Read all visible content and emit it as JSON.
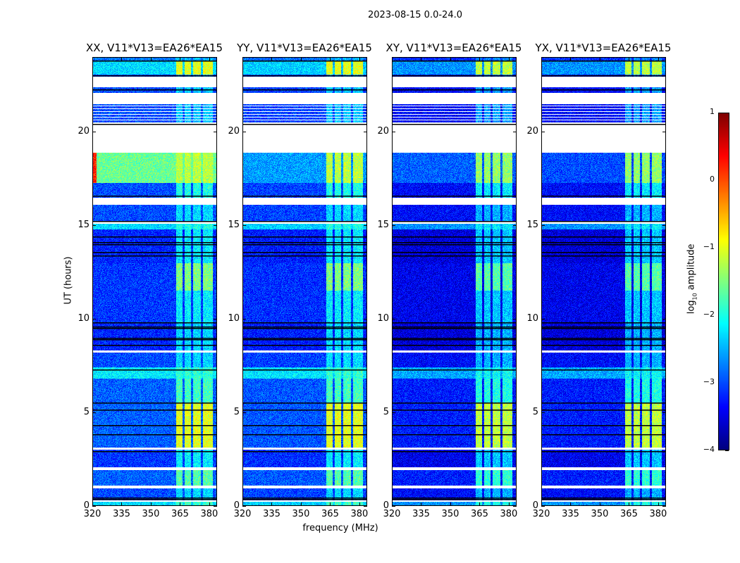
{
  "suptitle": "2023-08-15 0.0-24.0",
  "chart_data": {
    "type": "heatmap",
    "xlabel": "frequency (MHz)",
    "ylabel": "UT (hours)",
    "xlim": [
      320,
      384
    ],
    "ylim": [
      0,
      24
    ],
    "xticks": [
      320,
      335,
      350,
      365,
      380
    ],
    "yticks": [
      0,
      5,
      10,
      15,
      20
    ],
    "colormap": "jet",
    "colorbar": {
      "label_main": "log",
      "label_sub": "10",
      "label_rest": " amplitude",
      "range": [
        -4,
        1
      ],
      "ticks": [
        1,
        0,
        -1,
        -2,
        -3,
        -4
      ]
    },
    "panels": [
      {
        "title": "XX, V11*V13=EA26*EA15",
        "offset": 0.0,
        "evening_level": -1.6
      },
      {
        "title": "YY, V11*V13=EA26*EA15",
        "offset": -0.05,
        "evening_level": -2.6
      },
      {
        "title": "XY, V11*V13=EA26*EA15",
        "offset": -0.35,
        "evening_level": -2.9
      },
      {
        "title": "YX, V11*V13=EA26*EA15",
        "offset": -0.35,
        "evening_level": -3.0
      }
    ],
    "rfi_band_mhz": [
      363,
      382
    ],
    "rfi_gaps_mhz": [
      [
        366.5,
        367.5
      ],
      [
        371,
        372
      ],
      [
        376,
        377
      ]
    ],
    "segments_hours": [
      {
        "from": 0.0,
        "to": 0.2,
        "level": -2.3,
        "rfi": -1.8
      },
      {
        "from": 0.2,
        "to": 0.28,
        "flagged": true
      },
      {
        "from": 0.28,
        "to": 0.9,
        "level": -3.0,
        "rfi": -2.3
      },
      {
        "from": 0.9,
        "to": 1.05,
        "flagged": true
      },
      {
        "from": 1.05,
        "to": 1.9,
        "level": -2.9,
        "rfi": -1.7
      },
      {
        "from": 1.9,
        "to": 2.05,
        "flagged": true
      },
      {
        "from": 2.05,
        "to": 3.0,
        "level": -3.1,
        "rfi": -2.2
      },
      {
        "from": 3.0,
        "to": 3.1,
        "flagged": true
      },
      {
        "from": 3.1,
        "to": 5.5,
        "level": -2.9,
        "rfi": -1.0
      },
      {
        "from": 5.5,
        "to": 6.8,
        "level": -2.9,
        "rfi": -1.8
      },
      {
        "from": 6.8,
        "to": 7.4,
        "level": -2.2,
        "rfi": -1.9
      },
      {
        "from": 7.4,
        "to": 8.2,
        "level": -3.0,
        "rfi": -2.3
      },
      {
        "from": 8.2,
        "to": 8.32,
        "flagged": true
      },
      {
        "from": 8.32,
        "to": 9.8,
        "level": -3.2,
        "rfi": -2.3
      },
      {
        "from": 9.8,
        "to": 11.5,
        "level": -3.1,
        "rfi": -2.2
      },
      {
        "from": 11.5,
        "to": 13.0,
        "level": -3.1,
        "rfi": -1.5
      },
      {
        "from": 13.0,
        "to": 14.8,
        "level": -3.2,
        "rfi": -2.2
      },
      {
        "from": 14.8,
        "to": 15.1,
        "level": -2.3,
        "rfi": -2.0
      },
      {
        "from": 15.1,
        "to": 15.2,
        "flagged": true
      },
      {
        "from": 15.2,
        "to": 16.1,
        "level": -3.0,
        "rfi": -2.3
      },
      {
        "from": 16.1,
        "to": 16.5,
        "flagged": true
      },
      {
        "from": 16.5,
        "to": 17.3,
        "level": -3.0,
        "rfi": -2.0
      },
      {
        "from": 17.3,
        "to": 18.9,
        "level": "evening",
        "rfi": -1.2
      },
      {
        "from": 18.9,
        "to": 20.5,
        "flagged": true
      },
      {
        "from": 20.5,
        "to": 21.5,
        "level": -3.0,
        "rfi": -2.4,
        "striped": true
      },
      {
        "from": 21.5,
        "to": 22.1,
        "flagged": true
      },
      {
        "from": 22.1,
        "to": 22.4,
        "level": -3.0,
        "rfi": -2.4
      },
      {
        "from": 22.4,
        "to": 23.0,
        "flagged": true
      },
      {
        "from": 23.0,
        "to": 23.1,
        "level": -3.1,
        "rfi": -2.6
      },
      {
        "from": 23.1,
        "to": 23.8,
        "level": -2.3,
        "rfi": -1.0
      },
      {
        "from": 23.8,
        "to": 24.0,
        "level": -2.8,
        "rfi": -2.5
      }
    ],
    "black_lines_hours": [
      0.35,
      0.42,
      2.9,
      3.8,
      4.3,
      5.15,
      5.5,
      7.3,
      8.6,
      8.9,
      9.0,
      9.5,
      9.6,
      9.8,
      13.4,
      13.6,
      14.0,
      14.1,
      14.4,
      15.25,
      16.6,
      20.45,
      22.3,
      23.05,
      23.85
    ]
  }
}
